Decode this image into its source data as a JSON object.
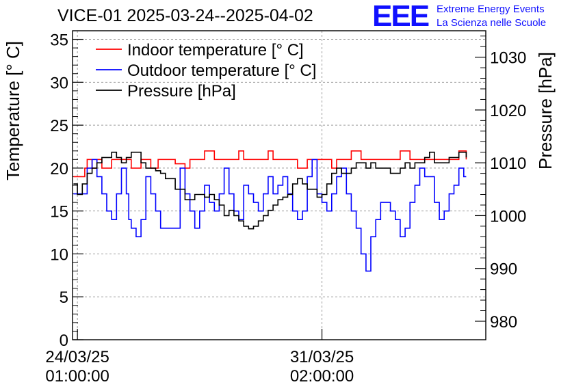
{
  "chart_data": {
    "type": "line",
    "title": "VICE-01 2025-03-24--2025-04-02",
    "ylabel": "Temperature [° C]",
    "y2label": "Pressure [hPa]",
    "ylim": [
      0,
      36
    ],
    "y2lim": [
      976.5,
      1035
    ],
    "xlim_days": [
      -0.1,
      8.35
    ],
    "yticks": [
      0,
      5,
      10,
      15,
      20,
      25,
      30,
      35
    ],
    "y2ticks": [
      980,
      990,
      1000,
      1010,
      1020,
      1030
    ],
    "xticks": [
      {
        "pos": 0,
        "label_date": "24/03/25",
        "label_time": "01:00:00"
      },
      {
        "pos": 5,
        "label_date": "31/03/25",
        "label_time": "02:00:00"
      }
    ],
    "grid": true,
    "legend_position": "top-left",
    "series": [
      {
        "name": "Indoor temperature [° C]",
        "color": "#ff0000",
        "axis": "left",
        "x": [
          -0.08,
          0.1,
          0.15,
          0.2,
          0.3,
          0.4,
          0.5,
          0.6,
          0.7,
          0.9,
          1.1,
          1.3,
          1.5,
          1.6,
          1.65,
          1.8,
          2.0,
          2.2,
          2.3,
          2.5,
          2.6,
          2.8,
          3.0,
          3.2,
          3.3,
          3.4,
          3.6,
          3.8,
          3.9,
          4.0,
          4.2,
          4.4,
          4.5,
          4.7,
          4.9,
          5.0,
          5.2,
          5.3,
          5.4,
          5.6,
          5.8,
          6.0,
          6.2,
          6.4,
          6.6,
          6.8,
          7.0,
          7.2,
          7.4,
          7.6,
          7.8,
          7.95
        ],
        "y": [
          19,
          19,
          20,
          21,
          20,
          21,
          20,
          20,
          21,
          21,
          20,
          21,
          20,
          20,
          21,
          21,
          20.5,
          20,
          21,
          21,
          22,
          21,
          21,
          21,
          22,
          21,
          21,
          21,
          22,
          21,
          21,
          21,
          20,
          21,
          21,
          21,
          20,
          21,
          21,
          22,
          21,
          21,
          21,
          21,
          22,
          21,
          21,
          21,
          21,
          21,
          22,
          21
        ]
      },
      {
        "name": "Outdoor temperature [° C]",
        "color": "#0000ff",
        "axis": "left",
        "x": [
          -0.08,
          0.1,
          0.2,
          0.3,
          0.4,
          0.5,
          0.6,
          0.7,
          0.8,
          0.9,
          1.0,
          1.05,
          1.1,
          1.2,
          1.3,
          1.4,
          1.5,
          1.6,
          1.7,
          1.8,
          2.1,
          2.2,
          2.3,
          2.4,
          2.5,
          2.6,
          2.7,
          2.8,
          2.9,
          3.0,
          3.1,
          3.2,
          3.3,
          3.4,
          3.5,
          3.6,
          3.7,
          3.8,
          3.9,
          4.0,
          4.1,
          4.2,
          4.3,
          4.4,
          4.5,
          4.6,
          4.7,
          4.8,
          4.9,
          5.0,
          5.1,
          5.2,
          5.3,
          5.4,
          5.5,
          5.6,
          5.7,
          5.8,
          5.9,
          6.0,
          6.1,
          6.2,
          6.3,
          6.4,
          6.5,
          6.6,
          6.7,
          6.8,
          6.9,
          7.0,
          7.1,
          7.2,
          7.3,
          7.4,
          7.5,
          7.6,
          7.7,
          7.8,
          7.9,
          7.95
        ],
        "y": [
          17,
          17,
          20,
          21,
          19,
          17,
          15,
          14,
          17,
          20,
          17,
          14,
          13,
          12,
          14,
          19,
          17,
          15,
          13,
          13,
          20,
          17,
          15,
          13,
          15,
          18,
          16,
          15,
          17,
          20,
          17,
          15,
          14,
          18,
          17,
          16,
          15,
          17,
          19,
          17,
          18,
          19,
          17,
          15,
          14,
          15,
          19,
          21,
          17,
          16,
          15,
          17,
          19,
          20,
          17,
          15,
          13,
          10,
          8,
          12,
          14,
          16,
          16,
          15,
          14,
          12,
          13,
          16,
          18,
          20,
          19,
          19,
          16,
          14,
          15,
          17,
          18,
          20,
          19,
          19
        ]
      },
      {
        "name": "Pressure [hPa]",
        "color": "#000000",
        "axis": "right",
        "x": [
          -0.08,
          0.0,
          0.1,
          0.2,
          0.3,
          0.4,
          0.5,
          0.6,
          0.7,
          0.8,
          0.9,
          1.0,
          1.1,
          1.2,
          1.3,
          1.4,
          1.5,
          1.6,
          1.7,
          1.8,
          2.0,
          2.2,
          2.4,
          2.6,
          2.7,
          2.8,
          2.9,
          3.0,
          3.1,
          3.2,
          3.3,
          3.4,
          3.5,
          3.6,
          3.7,
          3.8,
          3.9,
          4.0,
          4.1,
          4.2,
          4.3,
          4.4,
          4.5,
          4.6,
          4.7,
          4.8,
          4.9,
          5.0,
          5.1,
          5.2,
          5.3,
          5.4,
          5.5,
          5.6,
          5.7,
          5.8,
          5.9,
          6.0,
          6.1,
          6.2,
          6.3,
          6.4,
          6.5,
          6.6,
          6.7,
          6.8,
          6.9,
          7.0,
          7.1,
          7.2,
          7.3,
          7.4,
          7.5,
          7.6,
          7.7,
          7.8,
          7.9,
          7.95
        ],
        "y": [
          1006,
          1004,
          1006,
          1008,
          1009,
          1010,
          1011,
          1011,
          1012,
          1011,
          1010,
          1011,
          1012,
          1012,
          1010,
          1009,
          1009,
          1008.5,
          1008,
          1007,
          1005,
          1003,
          1004,
          1003.5,
          1004,
          1003,
          1002,
          1000,
          1001,
          1000,
          999,
          998,
          997.5,
          998,
          999,
          1000,
          1001,
          1002,
          1003,
          1003.5,
          1004,
          1006,
          1007,
          1006,
          1005,
          1005,
          1003.5,
          1004,
          1006,
          1008,
          1009,
          1008,
          1008,
          1009,
          1010,
          1010,
          1009,
          1010,
          1009,
          1009,
          1009,
          1008,
          1008,
          1009,
          1010,
          1009,
          1010,
          1010,
          1011,
          1012,
          1010,
          1010,
          1010,
          1011,
          1011,
          1012,
          1012,
          1011
        ]
      }
    ]
  },
  "logo": {
    "mark": "EEE",
    "line1": "Extreme Energy Events",
    "line2": "La Scienza nelle Scuole",
    "color": "#1010ff"
  }
}
